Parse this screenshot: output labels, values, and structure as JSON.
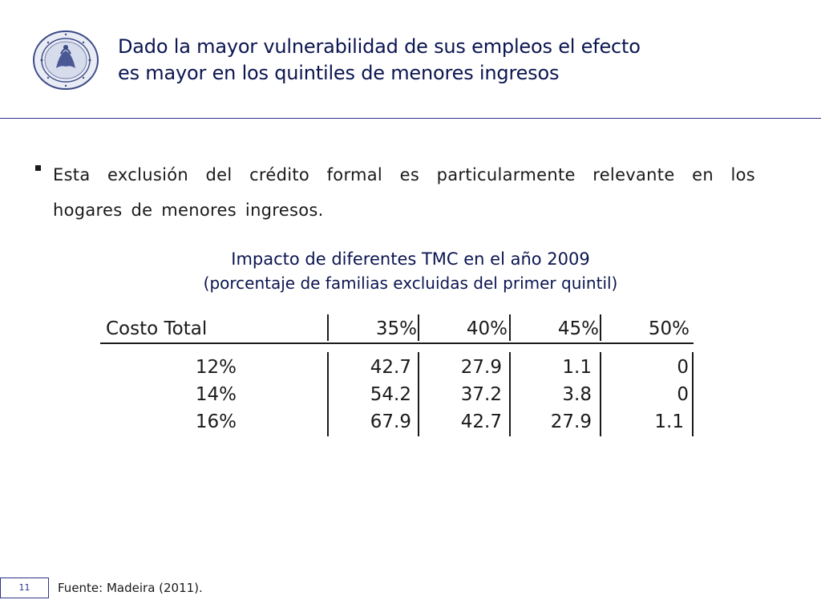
{
  "header": {
    "logo_icon": "banco-central-seal-icon",
    "title_line1": "Dado la mayor vulnerabilidad de sus empleos el efecto",
    "title_line2": "es mayor en los quintiles de menores ingresos"
  },
  "bullet": {
    "text": "Esta exclusión del crédito formal es particularmente relevante en los hogares de menores ingresos."
  },
  "table": {
    "title": "Impacto de diferentes TMC en el año 2009",
    "subtitle": "(porcentaje de familias excluidas del primer quintil)",
    "header_label": "Costo Total",
    "columns": [
      "35%",
      "40%",
      "45%",
      "50%"
    ],
    "rows": [
      {
        "label": "12%",
        "values": [
          "42.7",
          "27.9",
          "1.1",
          "0"
        ]
      },
      {
        "label": "14%",
        "values": [
          "54.2",
          "37.2",
          "3.8",
          "0"
        ]
      },
      {
        "label": "16%",
        "values": [
          "67.9",
          "42.7",
          "27.9",
          "1.1"
        ]
      }
    ]
  },
  "footer": {
    "page_number": "11",
    "source": "Fuente: Madeira (2011)."
  },
  "colors": {
    "title": "#0b1550",
    "rule": "#2d3585"
  }
}
